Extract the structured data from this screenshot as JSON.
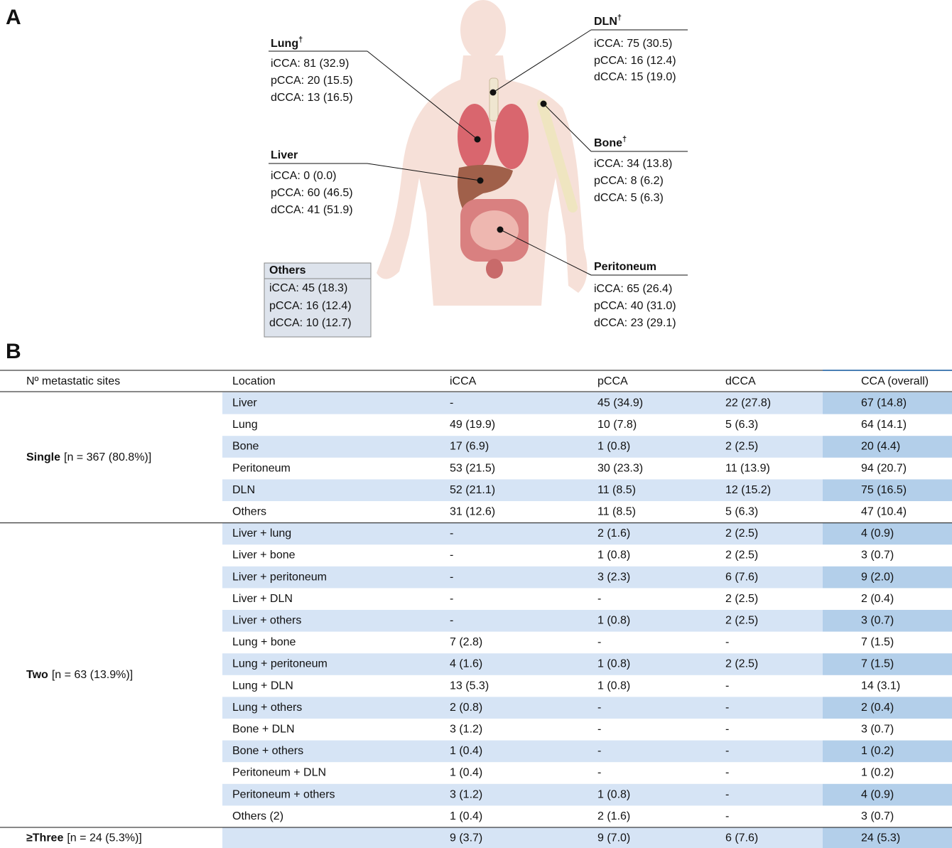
{
  "panel_a": {
    "label": "A",
    "sites": [
      {
        "name": "Lung",
        "mark": "†",
        "lines": [
          "iCCA: 81 (32.9)",
          "pCCA: 20 (15.5)",
          "dCCA: 13 (16.5)"
        ]
      },
      {
        "name": "Liver",
        "lines": [
          "iCCA: 0 (0.0)",
          "pCCA: 60 (46.5)",
          "dCCA: 41 (51.9)"
        ]
      },
      {
        "name": "Others",
        "lines": [
          "iCCA: 45 (18.3)",
          "pCCA: 16 (12.4)",
          "dCCA: 10 (12.7)"
        ]
      },
      {
        "name": "DLN",
        "mark": "†",
        "lines": [
          "iCCA: 75 (30.5)",
          "pCCA: 16 (12.4)",
          "dCCA: 15 (19.0)"
        ]
      },
      {
        "name": "Bone",
        "mark": "†",
        "lines": [
          "iCCA: 34 (13.8)",
          "pCCA: 8 (6.2)",
          "dCCA: 5 (6.3)"
        ]
      },
      {
        "name": "Peritoneum",
        "lines": [
          "iCCA: 65 (26.4)",
          "pCCA: 40 (31.0)",
          "dCCA: 23 (29.1)"
        ]
      }
    ]
  },
  "panel_b": {
    "label": "B",
    "table": {
      "header": [
        "Nº metastatic sites",
        "Location",
        "iCCA",
        "pCCA",
        "dCCA",
        "CCA (overall)"
      ],
      "groups": [
        {
          "label": "Single",
          "detail": "[n = 367 (80.8%)]",
          "rows": [
            {
              "location": "Liver",
              "cells": [
                "-",
                "45 (34.9)",
                "22 (27.8)",
                "67 (14.8)"
              ]
            },
            {
              "location": "Lung",
              "cells": [
                "49 (19.9)",
                "10 (7.8)",
                "5 (6.3)",
                "64 (14.1)"
              ]
            },
            {
              "location": "Bone",
              "cells": [
                "17 (6.9)",
                "1 (0.8)",
                "2 (2.5)",
                "20 (4.4)"
              ]
            },
            {
              "location": "Peritoneum",
              "cells": [
                "53 (21.5)",
                "30 (23.3)",
                "11 (13.9)",
                "94 (20.7)"
              ]
            },
            {
              "location": "DLN",
              "cells": [
                "52 (21.1)",
                "11 (8.5)",
                "12 (15.2)",
                "75 (16.5)"
              ]
            },
            {
              "location": "Others",
              "cells": [
                "31 (12.6)",
                "11 (8.5)",
                "5 (6.3)",
                "47 (10.4)"
              ]
            }
          ]
        },
        {
          "label": "Two",
          "detail": "[n = 63 (13.9%)]",
          "rows": [
            {
              "location": "Liver + lung",
              "cells": [
                "-",
                "2 (1.6)",
                "2 (2.5)",
                "4 (0.9)"
              ]
            },
            {
              "location": "Liver + bone",
              "cells": [
                "-",
                "1 (0.8)",
                "2 (2.5)",
                "3 (0.7)"
              ]
            },
            {
              "location": "Liver + peritoneum",
              "cells": [
                "-",
                "3 (2.3)",
                "6 (7.6)",
                "9 (2.0)"
              ]
            },
            {
              "location": "Liver + DLN",
              "cells": [
                "-",
                "-",
                "2 (2.5)",
                "2 (0.4)"
              ]
            },
            {
              "location": "Liver + others",
              "cells": [
                "-",
                "1 (0.8)",
                "2 (2.5)",
                "3 (0.7)"
              ]
            },
            {
              "location": "Lung + bone",
              "cells": [
                "7 (2.8)",
                "-",
                "-",
                "7 (1.5)"
              ]
            },
            {
              "location": "Lung + peritoneum",
              "cells": [
                "4 (1.6)",
                "1 (0.8)",
                "2 (2.5)",
                "7 (1.5)"
              ]
            },
            {
              "location": "Lung + DLN",
              "cells": [
                "13 (5.3)",
                "1 (0.8)",
                "-",
                "14 (3.1)"
              ]
            },
            {
              "location": "Lung + others",
              "cells": [
                "2 (0.8)",
                "-",
                "-",
                "2 (0.4)"
              ]
            },
            {
              "location": "Bone + DLN",
              "cells": [
                "3 (1.2)",
                "-",
                "-",
                "3 (0.7)"
              ]
            },
            {
              "location": "Bone + others",
              "cells": [
                "1 (0.4)",
                "-",
                "-",
                "1 (0.2)"
              ]
            },
            {
              "location": "Peritoneum + DLN",
              "cells": [
                "1 (0.4)",
                "-",
                "-",
                "1 (0.2)"
              ]
            },
            {
              "location": "Peritoneum + others",
              "cells": [
                "3 (1.2)",
                "1 (0.8)",
                "-",
                "4 (0.9)"
              ]
            },
            {
              "location": "Others (2)",
              "cells": [
                "1 (0.4)",
                "2 (1.6)",
                "-",
                "3 (0.7)"
              ]
            }
          ]
        },
        {
          "label": "≥Three",
          "detail": "[n = 24 (5.3%)]",
          "rows": [
            {
              "cells": [
                "9 (3.7)",
                "9 (7.0)",
                "6 (7.6)",
                "24 (5.3)"
              ]
            }
          ]
        }
      ]
    }
  }
}
